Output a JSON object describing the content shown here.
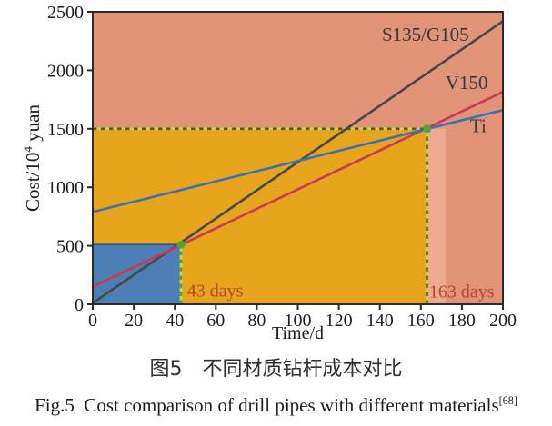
{
  "figure": {
    "captions": {
      "zh": "图5　不同材质钻杆成本对比",
      "en": "Fig.5  Cost comparison of drill pipes with different materials",
      "en_sup": "[68]"
    }
  },
  "chart_data": {
    "type": "line",
    "title": "",
    "xlabel": "Time/d",
    "ylabel": {
      "prefix": "Cost/10",
      "sup": "4",
      "suffix": " yuan"
    },
    "xlim": [
      0,
      200
    ],
    "ylim": [
      0,
      2500
    ],
    "x_ticks": [
      0,
      20,
      40,
      60,
      80,
      100,
      120,
      140,
      160,
      180,
      200
    ],
    "y_ticks": [
      0,
      500,
      1000,
      1500,
      2000,
      2500
    ],
    "grid": false,
    "legend_position": "inline-labels",
    "axis_color": "#2b2b2b",
    "series": [
      {
        "name": "S135/G105",
        "color": "#44474a",
        "points": [
          [
            0,
            10
          ],
          [
            200,
            2420
          ]
        ]
      },
      {
        "name": "V150",
        "color": "#c93a52",
        "points": [
          [
            0,
            150
          ],
          [
            200,
            1815
          ]
        ]
      },
      {
        "name": "Ti",
        "color": "#3a71b5",
        "points": [
          [
            0,
            790
          ],
          [
            200,
            1660
          ]
        ]
      }
    ],
    "regions": [
      {
        "name": "salmon-background",
        "x0": 0,
        "x1": 200,
        "y0": 0,
        "y1": 2500,
        "color": "#e29478"
      },
      {
        "name": "orange-cost-region",
        "x0": 0,
        "x1": 163,
        "y0": 0,
        "y1": 1500,
        "color": "#e7a41d"
      },
      {
        "name": "light-salmon-strip",
        "x0": 163,
        "x1": 172,
        "y0": 0,
        "y1": 1500,
        "color": "#edaa8e"
      },
      {
        "name": "blue-cost-region",
        "x0": 0,
        "x1": 43,
        "y0": 0,
        "y1": 510,
        "color": "#4e7eb6",
        "top_edge": "#2e6090"
      }
    ],
    "guide_lines": [
      {
        "name": "breakeven-1500-horizontal",
        "orient": "h",
        "y": 1500,
        "x0": 0,
        "x1": 163,
        "base_color": "#cdd83e",
        "dash_color": "#55562a"
      },
      {
        "name": "breakeven-163-vertical",
        "orient": "v",
        "x": 163,
        "y0": 0,
        "y1": 1500,
        "base_color": "#cdd83e",
        "dash_color": "#55562a"
      },
      {
        "name": "breakeven-43-vertical",
        "orient": "v",
        "x": 43,
        "y0": 0,
        "y1": 510,
        "base_color": "#cddd3f",
        "dash_color": "#4f9e3a"
      }
    ],
    "intersection_points": [
      {
        "name": "intersection-43-days",
        "x": 43,
        "y": 510,
        "color": "#52a43c"
      },
      {
        "name": "intersection-163-days",
        "x": 163,
        "y": 1500,
        "color": "#52a43c"
      }
    ],
    "annotations": [
      {
        "text": "S135/G105",
        "x": 141,
        "y": 2250,
        "color": "#33363a",
        "size": 21
      },
      {
        "text": "V150",
        "x": 172,
        "y": 1840,
        "color": "#33363a",
        "size": 21
      },
      {
        "text": "Ti",
        "x": 184,
        "y": 1470,
        "color": "#33363a",
        "size": 21
      },
      {
        "text": "43 days",
        "x": 46,
        "y": 65,
        "color": "#b5433b",
        "size": 20
      },
      {
        "text": "163 days",
        "x": 164,
        "y": 60,
        "color": "#b5433b",
        "size": 20
      }
    ]
  }
}
